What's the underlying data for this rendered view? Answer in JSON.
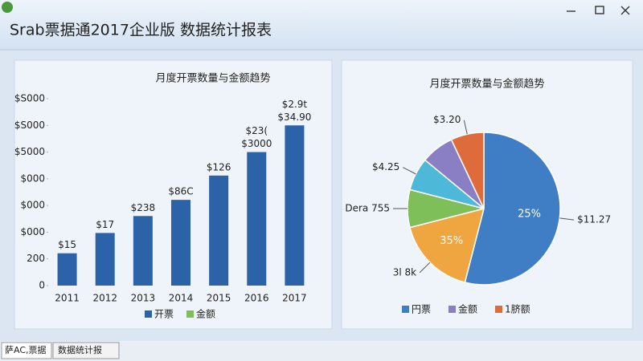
{
  "window": {
    "title": "Srab票据通2017企业版  数据统计报表",
    "tabs": [
      "萨AC,票据",
      "数据统计报"
    ]
  },
  "chart_data": [
    {
      "type": "bar",
      "title": "月度开票数量与金额趋势",
      "categories": [
        "2011",
        "2012",
        "2013",
        "2014",
        "2015",
        "2016",
        "2017"
      ],
      "series": [
        {
          "name": "开票",
          "color": "#2c62a8",
          "values": [
            242,
            394,
            521,
            642,
            824,
            1000,
            1200
          ]
        }
      ],
      "annotations": [
        [
          "$15"
        ],
        [
          "$17"
        ],
        [
          "$238"
        ],
        [
          "$86C"
        ],
        [
          "$126"
        ],
        [
          "$23(",
          "$3000"
        ],
        [
          "$2.9t",
          "$34.90"
        ]
      ],
      "legend": [
        {
          "name": "开票",
          "color": "#2c62a8"
        },
        {
          "name": "金额",
          "color": "#7fbf5a"
        }
      ],
      "ylim": [
        0,
        1400
      ],
      "yticks": [
        0,
        200,
        {
          "value": 400,
          "label": "$000"
        },
        {
          "value": 600,
          "label": "$000"
        },
        {
          "value": 800,
          "label": "$000"
        },
        {
          "value": 1000,
          "label": "$5000"
        },
        {
          "value": 1200,
          "label": "$S000"
        },
        {
          "value": 1400,
          "label": "$S000"
        }
      ]
    },
    {
      "type": "pie",
      "title": "月度开票数量与金额趋势",
      "values": [
        54,
        17,
        8,
        7,
        7,
        7
      ],
      "colors": [
        "#3f7ec4",
        "#f0a640",
        "#7fbf5a",
        "#4db8d8",
        "#8a7fc4",
        "#de6b3c"
      ],
      "labels": [
        "$11.27",
        "3l 8k",
        "Dera 755",
        "$4.25",
        null,
        "$3.20"
      ],
      "inner_labels": [
        "25%",
        "35%",
        null,
        null,
        null,
        null
      ],
      "legend": [
        {
          "name": "円票",
          "color": "#3f7ec4"
        },
        {
          "name": "金额",
          "color": "#8a7fc4"
        },
        {
          "name": "1脐额",
          "color": "#de6b3c"
        }
      ]
    }
  ]
}
